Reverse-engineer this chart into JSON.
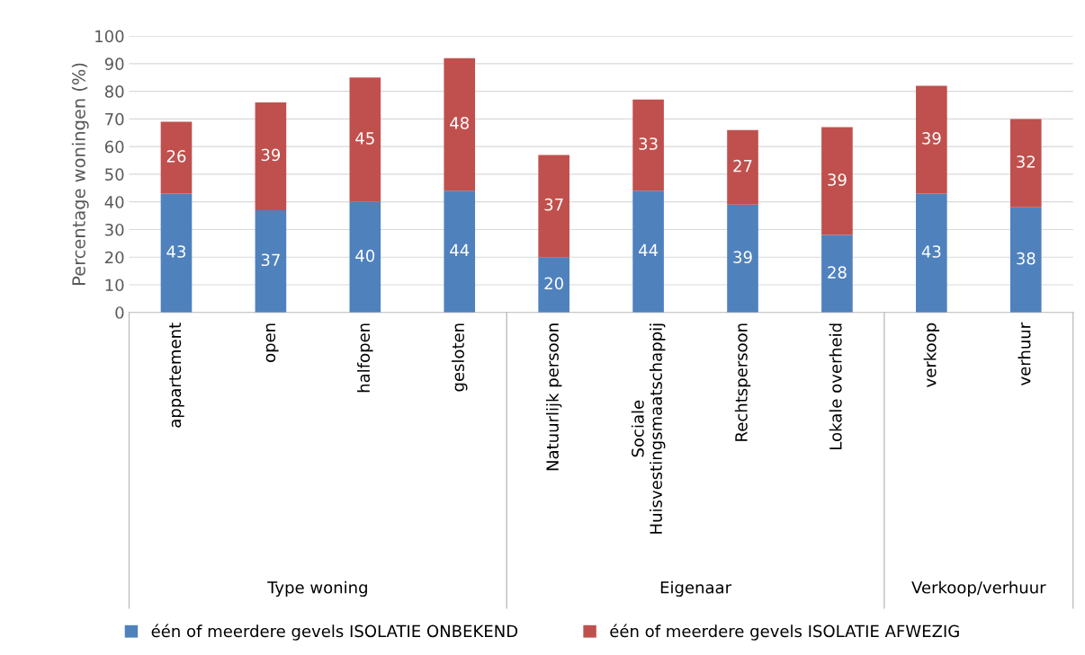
{
  "chart_data": {
    "type": "bar",
    "stacked": true,
    "ylabel": "Percentage woningen (%)",
    "categories": [
      "appartement",
      "open",
      "halfopen",
      "gesloten",
      "Natuurlijk persoon",
      "Sociale\nHuisvestingsmaatschappij",
      "Rechtspersoon",
      "Lokale overheid",
      "verkoop",
      "verhuur"
    ],
    "series": [
      {
        "name": "één of meerdere gevels ISOLATIE ONBEKEND",
        "color": "#4f81bd",
        "values": [
          43,
          37,
          40,
          44,
          20,
          44,
          39,
          28,
          43,
          38
        ]
      },
      {
        "name": "één of meerdere gevels ISOLATIE AFWEZIG",
        "color": "#c0504d",
        "values": [
          26,
          39,
          45,
          48,
          37,
          33,
          27,
          39,
          39,
          32
        ]
      }
    ],
    "ylim": [
      0,
      100
    ],
    "yticks": [
      0,
      10,
      20,
      30,
      40,
      50,
      60,
      70,
      80,
      90,
      100
    ],
    "grid": "y",
    "legend": "bottom",
    "data_labels": true,
    "annotations": [
      "Type woning",
      "Eigenaar",
      "Verkoop/verhuur"
    ]
  }
}
